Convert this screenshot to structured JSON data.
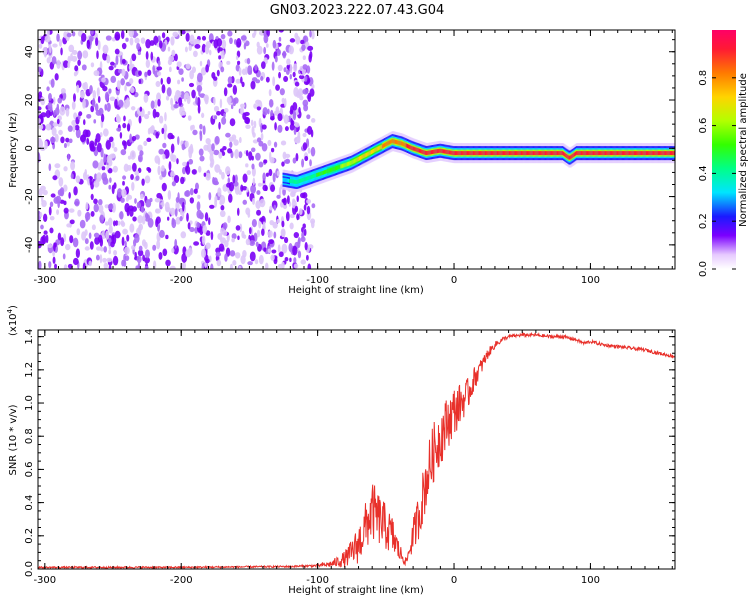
{
  "figure": {
    "title": "GN03.2023.222.07.43.G04"
  },
  "chart_data": [
    {
      "type": "heatmap",
      "xlabel": "Height of straight line (km)",
      "ylabel": "Frequency (Hz)",
      "xlim": [
        -305,
        162
      ],
      "ylim": [
        -50,
        49
      ],
      "x_ticks": [
        -300,
        -200,
        -100,
        0,
        100
      ],
      "x_tick_labels": [
        "-300",
        "-200",
        "-100",
        "0",
        "100"
      ],
      "y_ticks": [
        -40,
        -20,
        0,
        20,
        40
      ],
      "y_tick_labels": [
        "-40",
        "-20",
        "0",
        "20",
        "40"
      ],
      "colorbar": {
        "label": "Normalized spectral amplitude",
        "range": [
          0,
          1
        ],
        "ticks": [
          0,
          0.2,
          0.4,
          0.6,
          0.8
        ],
        "tick_labels": [
          "0.0",
          "0.2",
          "0.4",
          "0.6",
          "0.8"
        ]
      },
      "noise_region": {
        "x_from": -305,
        "x_to": -103,
        "amplitude_range": [
          0.0,
          0.15
        ]
      },
      "signal_track": {
        "x": [
          -125,
          -115,
          -105,
          -95,
          -85,
          -75,
          -65,
          -55,
          -45,
          -38,
          -30,
          -20,
          -10,
          0,
          25,
          50,
          75,
          80,
          85,
          90,
          95,
          100,
          130,
          162
        ],
        "frequency": [
          -13,
          -14,
          -12,
          -10,
          -8,
          -6,
          -3,
          0,
          3,
          2,
          0,
          -2,
          -1,
          -2,
          -2,
          -2,
          -2,
          -2,
          -4,
          -2,
          -2,
          -2,
          -2,
          -2
        ],
        "amplitude": [
          0.4,
          0.45,
          0.5,
          0.55,
          0.6,
          0.7,
          0.75,
          0.8,
          0.9,
          0.9,
          0.95,
          0.95,
          0.95,
          0.95,
          0.95,
          0.95,
          0.95,
          0.95,
          0.95,
          0.95,
          0.95,
          0.95,
          0.95,
          0.95
        ]
      },
      "grid": false
    },
    {
      "type": "line",
      "xlabel": "Height of straight line (km)",
      "ylabel": "SNR (10 * v/v)",
      "y_multiplier_label": "(x10",
      "y_multiplier_exponent": "4",
      "xlim": [
        -305,
        162
      ],
      "ylim": [
        0,
        1.44
      ],
      "x_ticks": [
        -300,
        -200,
        -100,
        0,
        100
      ],
      "x_tick_labels": [
        "-300",
        "-200",
        "-100",
        "0",
        "100"
      ],
      "y_ticks": [
        0,
        0.2,
        0.4,
        0.6,
        0.8,
        1.0,
        1.2,
        1.4
      ],
      "y_tick_labels": [
        "0.0",
        "0.2",
        "0.4",
        "0.6",
        "0.8",
        "1.0",
        "1.2",
        "1.4"
      ],
      "series": [
        {
          "color": "#e8302a",
          "x": [
            -305,
            -200,
            -120,
            -100,
            -90,
            -80,
            -75,
            -70,
            -65,
            -60,
            -55,
            -50,
            -45,
            -40,
            -35,
            -30,
            -25,
            -20,
            -15,
            -10,
            -5,
            0,
            5,
            10,
            15,
            20,
            25,
            30,
            35,
            40,
            50,
            60,
            70,
            80,
            85,
            90,
            95,
            100,
            110,
            120,
            130,
            140,
            150,
            162
          ],
          "values": [
            0.01,
            0.01,
            0.015,
            0.02,
            0.03,
            0.06,
            0.1,
            0.15,
            0.25,
            0.35,
            0.3,
            0.25,
            0.2,
            0.1,
            0.04,
            0.2,
            0.35,
            0.55,
            0.7,
            0.8,
            0.88,
            0.95,
            1.0,
            1.05,
            1.15,
            1.22,
            1.3,
            1.35,
            1.38,
            1.4,
            1.41,
            1.41,
            1.4,
            1.4,
            1.39,
            1.38,
            1.36,
            1.37,
            1.35,
            1.34,
            1.33,
            1.32,
            1.3,
            1.28
          ],
          "noise": [
            0.005,
            0.005,
            0.005,
            0.008,
            0.02,
            0.05,
            0.08,
            0.12,
            0.15,
            0.18,
            0.16,
            0.14,
            0.12,
            0.06,
            0.02,
            0.1,
            0.15,
            0.18,
            0.18,
            0.18,
            0.16,
            0.15,
            0.12,
            0.1,
            0.07,
            0.05,
            0.03,
            0.02,
            0.015,
            0.01,
            0.01,
            0.01,
            0.01,
            0.01,
            0.01,
            0.01,
            0.01,
            0.01,
            0.01,
            0.01,
            0.01,
            0.01,
            0.01,
            0.01
          ]
        }
      ],
      "grid": false
    }
  ]
}
